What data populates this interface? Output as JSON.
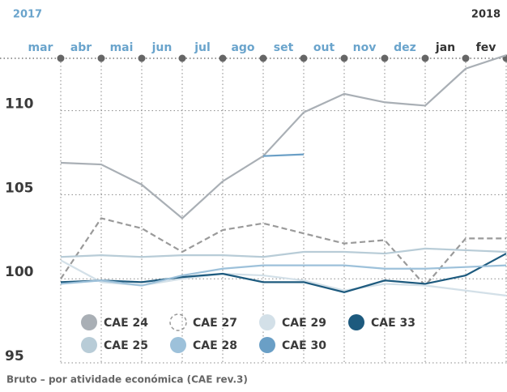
{
  "chart_data": {
    "type": "line",
    "years": [
      "2017",
      "2018"
    ],
    "categories": [
      "mar",
      "abr",
      "mai",
      "jun",
      "jul",
      "ago",
      "set",
      "out",
      "nov",
      "dez",
      "jan",
      "fev"
    ],
    "category_colors": [
      "#6aa4cc",
      "#6aa4cc",
      "#6aa4cc",
      "#6aa4cc",
      "#6aa4cc",
      "#6aa4cc",
      "#6aa4cc",
      "#6aa4cc",
      "#6aa4cc",
      "#6aa4cc",
      "#333333",
      "#333333"
    ],
    "series": [
      {
        "name": "CAE 24",
        "color": "#a9afb5",
        "values": [
          106.9,
          106.8,
          105.6,
          103.6,
          105.8,
          107.3,
          109.9,
          111.0,
          110.5,
          110.3,
          112.5,
          113.3
        ]
      },
      {
        "name": "CAE 27",
        "color": "#9a9a9a",
        "dashed": true,
        "values": [
          100.0,
          103.6,
          103.0,
          101.6,
          102.9,
          103.3,
          102.7,
          102.1,
          102.3,
          99.6,
          102.4,
          102.4
        ]
      },
      {
        "name": "CAE 29",
        "color": "#d3e0e8",
        "values": [
          101.1,
          99.8,
          99.6,
          100.0,
          100.3,
          100.2,
          99.9,
          99.3,
          99.7,
          99.6,
          99.3,
          99.0
        ]
      },
      {
        "name": "CAE 33",
        "color": "#1d5a7e",
        "values": [
          99.8,
          99.9,
          99.8,
          100.1,
          100.3,
          99.8,
          99.8,
          99.2,
          99.9,
          99.7,
          100.2,
          101.5
        ]
      },
      {
        "name": "CAE 25",
        "color": "#b8ccd7",
        "values": [
          101.3,
          101.4,
          101.3,
          101.4,
          101.4,
          101.3,
          101.6,
          101.6,
          101.5,
          101.8,
          101.7,
          101.6
        ]
      },
      {
        "name": "CAE 28",
        "color": "#9dc1da",
        "values": [
          99.7,
          99.9,
          99.6,
          100.2,
          100.6,
          100.8,
          100.8,
          100.8,
          100.6,
          100.6,
          100.7,
          100.8
        ]
      },
      {
        "name": "CAE 30",
        "color": "#6a9fc6",
        "values": [
          null,
          null,
          null,
          null,
          null,
          107.3,
          107.4,
          null,
          null,
          null,
          null,
          null
        ]
      }
    ],
    "ylim": [
      95,
      113.5
    ],
    "yticks": [
      95,
      100,
      105,
      110
    ],
    "grid": true,
    "caption": "Bruto – por atividade económica (CAE rev.3)"
  }
}
